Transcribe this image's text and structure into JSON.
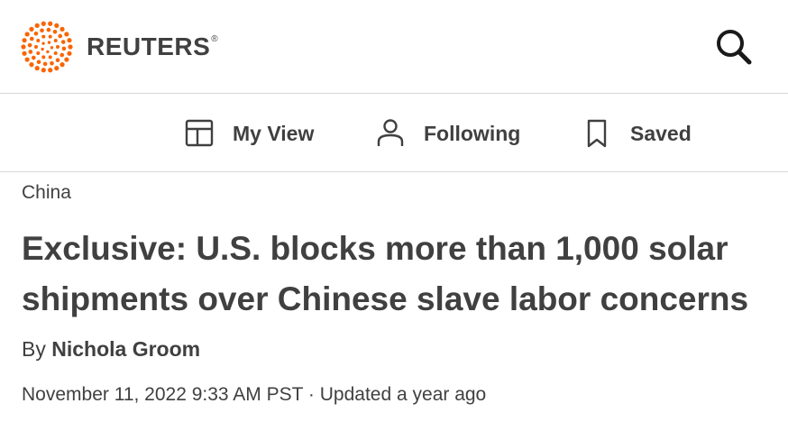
{
  "brand": {
    "name": "REUTERS",
    "registered_mark": "®",
    "accent_color": "#fa6400"
  },
  "header": {
    "search_icon": "search-icon"
  },
  "nav": {
    "items": [
      {
        "label": "My View",
        "icon": "layout-icon"
      },
      {
        "label": "Following",
        "icon": "person-icon"
      },
      {
        "label": "Saved",
        "icon": "bookmark-icon"
      }
    ]
  },
  "article": {
    "section": "China",
    "headline": "Exclusive: U.S. blocks more than 1,000 solar shipments over Chinese slave labor concerns",
    "byline_prefix": "By",
    "author": "Nichola Groom",
    "date": "November 11, 2022 9:33 AM PST",
    "separator": "·",
    "updated": "Updated a year ago"
  }
}
